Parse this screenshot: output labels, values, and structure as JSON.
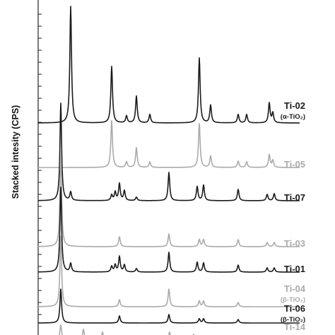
{
  "chart_data": {
    "type": "line",
    "ylabel": "Stacked intesity (CPS)",
    "colors": {
      "dark": "#1a1a1a",
      "light": "#aaaaaa"
    },
    "series": [
      {
        "name": "Ti-02",
        "sub": "(α-TiO₂)",
        "color": "dark",
        "peaks": [
          [
            100,
            165
          ],
          [
            158,
            80
          ],
          [
            179,
            10
          ],
          [
            193,
            38
          ],
          [
            212,
            12
          ],
          [
            282,
            92
          ],
          [
            298,
            25
          ],
          [
            337,
            12
          ],
          [
            349,
            12
          ],
          [
            381,
            28
          ],
          [
            386,
            14
          ]
        ]
      },
      {
        "name": "Ti-05",
        "sub": "",
        "color": "light",
        "peaks": [
          [
            158,
            66
          ],
          [
            179,
            8
          ],
          [
            193,
            28
          ],
          [
            212,
            8
          ],
          [
            282,
            62
          ],
          [
            298,
            16
          ],
          [
            337,
            9
          ],
          [
            349,
            8
          ],
          [
            381,
            18
          ],
          [
            386,
            10
          ]
        ]
      },
      {
        "name": "Ti-07",
        "sub": "",
        "color": "dark",
        "peaks": [
          [
            86,
            138
          ],
          [
            100,
            12
          ],
          [
            158,
            8
          ],
          [
            163,
            12
          ],
          [
            169,
            24
          ],
          [
            176,
            14
          ],
          [
            193,
            5
          ],
          [
            239,
            40
          ],
          [
            279,
            20
          ],
          [
            288,
            22
          ],
          [
            337,
            16
          ],
          [
            378,
            9
          ],
          [
            388,
            10
          ]
        ]
      },
      {
        "name": "Ti-03",
        "sub": "",
        "color": "light",
        "peaks": [
          [
            86,
            135
          ],
          [
            169,
            14
          ],
          [
            239,
            18
          ],
          [
            282,
            10
          ],
          [
            288,
            10
          ],
          [
            337,
            10
          ],
          [
            378,
            6
          ],
          [
            388,
            6
          ]
        ]
      },
      {
        "name": "Ti-01",
        "sub": "",
        "color": "dark",
        "peaks": [
          [
            86,
            120
          ],
          [
            100,
            12
          ],
          [
            158,
            8
          ],
          [
            163,
            10
          ],
          [
            169,
            22
          ],
          [
            176,
            10
          ],
          [
            193,
            5
          ],
          [
            239,
            28
          ],
          [
            279,
            14
          ],
          [
            288,
            13
          ],
          [
            337,
            10
          ],
          [
            378,
            6
          ],
          [
            388,
            6
          ]
        ]
      },
      {
        "name": "Ti-04",
        "sub": "(β-TiO₂)",
        "color": "light",
        "peaks": [
          [
            86,
            100
          ],
          [
            169,
            10
          ],
          [
            239,
            25
          ],
          [
            282,
            8
          ],
          [
            288,
            8
          ],
          [
            337,
            6
          ]
        ]
      },
      {
        "name": "Ti-06",
        "sub": "(β-TiO₂)",
        "color": "dark",
        "peaks": [
          [
            86,
            48
          ],
          [
            169,
            10
          ],
          [
            239,
            12
          ],
          [
            282,
            6
          ],
          [
            288,
            6
          ],
          [
            337,
            5
          ]
        ]
      },
      {
        "name": "Ti-14",
        "sub": "",
        "color": "light",
        "peaks": [
          [
            86,
            20
          ],
          [
            118,
            14
          ],
          [
            145,
            10
          ],
          [
            240,
            10
          ],
          [
            274,
            7
          ]
        ]
      }
    ]
  }
}
